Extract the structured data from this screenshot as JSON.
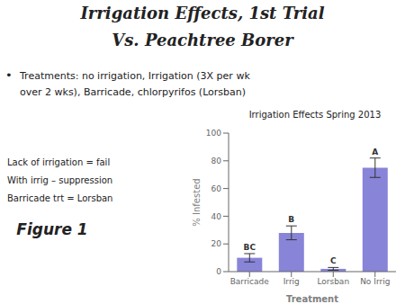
{
  "chart_data": {
    "type": "bar",
    "title": "Irrigation Effects Spring 2013",
    "xlabel": "Treatment",
    "ylabel": "% Infested",
    "categories": [
      "Barricade",
      "Irrig",
      "Lorsban",
      "No Irrig"
    ],
    "values": [
      10,
      28,
      2,
      75
    ],
    "errors": [
      3,
      5,
      1,
      7
    ],
    "letter_labels": [
      "BC",
      "B",
      "C",
      "A"
    ],
    "color": "#8884d8",
    "ylim": [
      0,
      100
    ],
    "yticks": [
      0,
      20,
      40,
      60,
      80,
      100
    ],
    "grid": false,
    "annotations": [
      "Irrigation Effects, 1st Trial",
      "Vs. Peachtree Borer",
      "•",
      "Treatments: no irrigation, Irrigation (3X per wk",
      "over 2 wks), Barricade, chlorpyrifos (Lorsban)",
      "Lack of irrigation = fail",
      "With irrig – suppression",
      "Barricade trt = Lorsban",
      "Figure 1"
    ]
  }
}
